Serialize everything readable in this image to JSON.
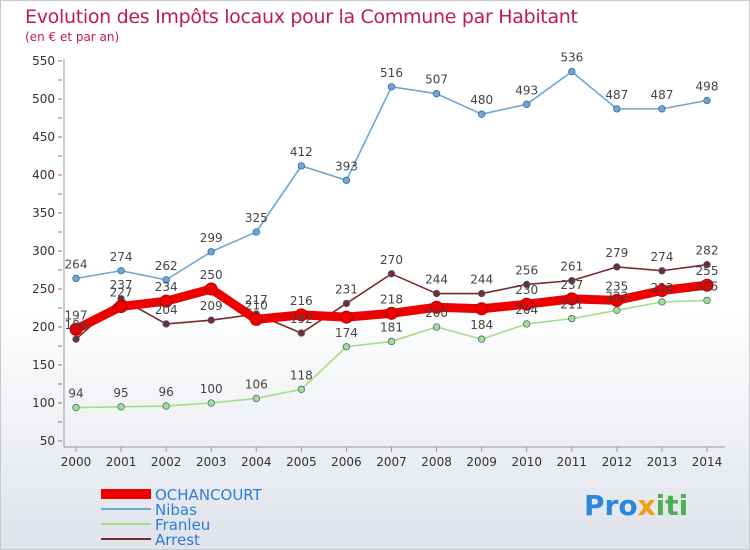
{
  "header": {
    "title": "Evolution des Impôts locaux pour la Commune par Habitant",
    "subtitle": "(en € et par an)"
  },
  "logo": {
    "part1": "Pro",
    "part2": "x",
    "part3": "iti"
  },
  "chart_data": {
    "type": "line",
    "x": [
      "2000",
      "2001",
      "2002",
      "2003",
      "2004",
      "2005",
      "2006",
      "2007",
      "2008",
      "2009",
      "2010",
      "2011",
      "2012",
      "2013",
      "2014"
    ],
    "ylim": [
      50,
      550
    ],
    "yticks": [
      50,
      100,
      150,
      200,
      250,
      300,
      350,
      400,
      450,
      500,
      550
    ],
    "grid": false,
    "legend_position": "bottom-left",
    "series": [
      {
        "name": "OCHANCOURT",
        "color": "#ee0000",
        "values": [
          197,
          227,
          234,
          250,
          210,
          216,
          213,
          218,
          226,
          224,
          230,
          237,
          235,
          248,
          255
        ],
        "labels": [
          "197",
          "227",
          "234",
          "250",
          "210",
          "216",
          "",
          "218",
          "",
          "",
          "230",
          "237",
          "235",
          "",
          "255"
        ]
      },
      {
        "name": "Nibas",
        "color": "#6ea6d6",
        "values": [
          264,
          274,
          262,
          299,
          325,
          412,
          393,
          516,
          507,
          480,
          493,
          536,
          487,
          487,
          498
        ],
        "labels": [
          "264",
          "274",
          "262",
          "299",
          "325",
          "412",
          "393",
          "516",
          "507",
          "480",
          "493",
          "536",
          "487",
          "487",
          "498"
        ]
      },
      {
        "name": "Franleu",
        "color": "#a8dc88",
        "values": [
          94,
          95,
          96,
          100,
          106,
          118,
          174,
          181,
          200,
          184,
          204,
          211,
          222,
          233,
          235
        ],
        "labels": [
          "94",
          "95",
          "96",
          "100",
          "106",
          "118",
          "174",
          "181",
          "200",
          "184",
          "204",
          "211",
          "222",
          "233",
          "235"
        ]
      },
      {
        "name": "Arrest",
        "color": "#7a2a2a",
        "values": [
          184,
          237,
          204,
          209,
          217,
          192,
          231,
          270,
          244,
          244,
          256,
          261,
          279,
          274,
          282
        ],
        "labels": [
          "184",
          "237",
          "204",
          "209",
          "217",
          "192",
          "231",
          "270",
          "244",
          "244",
          "256",
          "261",
          "279",
          "274",
          "282"
        ]
      }
    ]
  }
}
